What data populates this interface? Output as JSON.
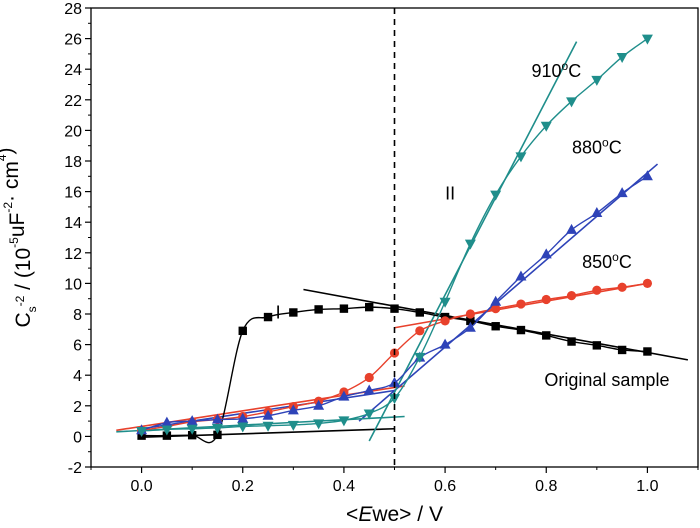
{
  "chart_data": {
    "type": "line",
    "xlabel_parts": [
      "<",
      "E",
      "we> / V"
    ],
    "ylabel_parts": [
      "C",
      "s",
      "-2",
      " / (10",
      "-5",
      "uF",
      "-2",
      "· cm",
      "4",
      ")"
    ],
    "xlim": [
      -0.1,
      1.1
    ],
    "ylim": [
      -2,
      28
    ],
    "xticks": [
      0.0,
      0.2,
      0.4,
      0.6,
      0.8,
      1.0
    ],
    "xtick_labels": [
      "0.0",
      "0.2",
      "0.4",
      "0.6",
      "0.8",
      "1.0"
    ],
    "yticks": [
      -2,
      0,
      2,
      4,
      6,
      8,
      10,
      12,
      14,
      16,
      18,
      20,
      22,
      24,
      26,
      28
    ],
    "ytick_labels": [
      "-2",
      "0",
      "2",
      "4",
      "6",
      "8",
      "10",
      "12",
      "14",
      "16",
      "18",
      "20",
      "22",
      "24",
      "26",
      "28"
    ],
    "vline_x": 0.5,
    "series": [
      {
        "name": "Original sample",
        "color": "#000000",
        "marker": "square",
        "points": [
          [
            0.0,
            0.05
          ],
          [
            0.05,
            0.05
          ],
          [
            0.1,
            0.08
          ],
          [
            0.15,
            0.1
          ],
          [
            0.2,
            6.9
          ],
          [
            0.25,
            7.8
          ],
          [
            0.3,
            8.1
          ],
          [
            0.35,
            8.3
          ],
          [
            0.4,
            8.35
          ],
          [
            0.45,
            8.45
          ],
          [
            0.5,
            8.35
          ],
          [
            0.55,
            8.1
          ],
          [
            0.6,
            7.8
          ],
          [
            0.65,
            7.55
          ],
          [
            0.7,
            7.2
          ],
          [
            0.75,
            6.95
          ],
          [
            0.8,
            6.6
          ],
          [
            0.85,
            6.2
          ],
          [
            0.9,
            5.95
          ],
          [
            0.95,
            5.65
          ],
          [
            1.0,
            5.55
          ]
        ],
        "fit_lines": [
          [
            [
              0.0,
              -0.05
            ],
            [
              0.5,
              0.5
            ]
          ],
          [
            [
              0.32,
              9.6
            ],
            [
              1.08,
              5.0
            ]
          ]
        ]
      },
      {
        "name": "850°C",
        "color": "#e8412c",
        "marker": "circle",
        "points": [
          [
            0.0,
            0.4
          ],
          [
            0.05,
            0.65
          ],
          [
            0.1,
            0.95
          ],
          [
            0.15,
            1.1
          ],
          [
            0.2,
            1.3
          ],
          [
            0.25,
            1.6
          ],
          [
            0.3,
            1.95
          ],
          [
            0.35,
            2.3
          ],
          [
            0.4,
            2.9
          ],
          [
            0.45,
            3.85
          ],
          [
            0.5,
            5.45
          ],
          [
            0.55,
            6.9
          ],
          [
            0.6,
            7.55
          ],
          [
            0.65,
            8.0
          ],
          [
            0.7,
            8.35
          ],
          [
            0.75,
            8.65
          ],
          [
            0.8,
            8.95
          ],
          [
            0.85,
            9.2
          ],
          [
            0.9,
            9.55
          ],
          [
            0.95,
            9.75
          ],
          [
            1.0,
            10.0
          ]
        ],
        "fit_lines": [
          [
            [
              -0.05,
              0.4
            ],
            [
              0.52,
              3.3
            ]
          ],
          [
            [
              0.5,
              7.1
            ],
            [
              1.0,
              10.0
            ]
          ]
        ]
      },
      {
        "name": "880°C",
        "color": "#2e43b8",
        "marker": "triangle-up",
        "points": [
          [
            0.0,
            0.4
          ],
          [
            0.05,
            0.9
          ],
          [
            0.1,
            1.0
          ],
          [
            0.15,
            1.1
          ],
          [
            0.2,
            1.15
          ],
          [
            0.25,
            1.35
          ],
          [
            0.3,
            1.7
          ],
          [
            0.35,
            2.0
          ],
          [
            0.4,
            2.6
          ],
          [
            0.45,
            3.0
          ],
          [
            0.5,
            3.5
          ],
          [
            0.55,
            5.15
          ],
          [
            0.6,
            6.0
          ],
          [
            0.65,
            7.1
          ],
          [
            0.7,
            8.8
          ],
          [
            0.75,
            10.45
          ],
          [
            0.8,
            11.9
          ],
          [
            0.85,
            13.5
          ],
          [
            0.9,
            14.6
          ],
          [
            0.95,
            15.9
          ],
          [
            1.0,
            17.0
          ]
        ],
        "fit_lines": [
          [
            [
              0.0,
              0.5
            ],
            [
              0.5,
              3.0
            ]
          ],
          [
            [
              0.43,
              1.0
            ],
            [
              1.02,
              17.8
            ]
          ]
        ]
      },
      {
        "name": "910°C",
        "color": "#1f8e8b",
        "marker": "triangle-down",
        "points": [
          [
            0.0,
            0.35
          ],
          [
            0.05,
            0.45
          ],
          [
            0.1,
            0.5
          ],
          [
            0.15,
            0.55
          ],
          [
            0.2,
            0.65
          ],
          [
            0.25,
            0.7
          ],
          [
            0.3,
            0.75
          ],
          [
            0.35,
            0.85
          ],
          [
            0.4,
            1.05
          ],
          [
            0.45,
            1.5
          ],
          [
            0.5,
            2.5
          ],
          [
            0.55,
            5.2
          ],
          [
            0.6,
            8.8
          ],
          [
            0.65,
            12.6
          ],
          [
            0.7,
            15.8
          ],
          [
            0.75,
            18.3
          ],
          [
            0.8,
            20.3
          ],
          [
            0.85,
            21.9
          ],
          [
            0.9,
            23.3
          ],
          [
            0.95,
            24.8
          ],
          [
            1.0,
            26.0
          ]
        ],
        "fit_lines": [
          [
            [
              -0.05,
              0.3
            ],
            [
              0.52,
              1.3
            ]
          ],
          [
            [
              0.45,
              -0.3
            ],
            [
              0.86,
              25.8
            ]
          ]
        ]
      }
    ],
    "annotations": [
      {
        "text": "I",
        "x": 0.27,
        "y": 7.7
      },
      {
        "text": "II",
        "x": 0.61,
        "y": 15.5
      },
      {
        "text": "910",
        "sup": "o",
        "tail": "C",
        "x": 0.82,
        "y": 23.5
      },
      {
        "text": "880",
        "sup": "o",
        "tail": "C",
        "x": 0.9,
        "y": 18.5
      },
      {
        "text": "850",
        "sup": "o",
        "tail": "C",
        "x": 0.92,
        "y": 11.0
      },
      {
        "text": "Original sample",
        "x": 0.92,
        "y": 3.3
      }
    ]
  }
}
